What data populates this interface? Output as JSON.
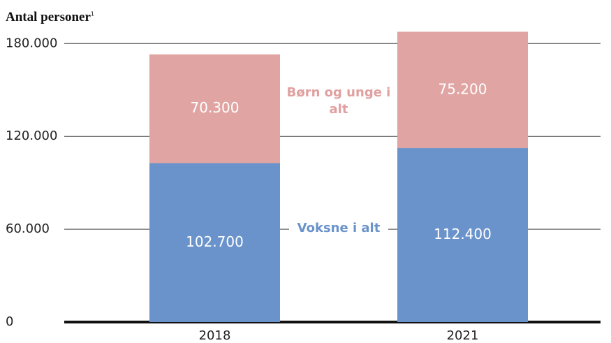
{
  "chart_data": {
    "type": "stacked-bar",
    "title": "Antal personer",
    "title_note": "1",
    "categories": [
      "2018",
      "2021"
    ],
    "series": [
      {
        "name": "Voksne i alt",
        "color": "#6a93cc",
        "values": [
          102700,
          112400
        ],
        "value_labels": [
          "102.700",
          "112.400"
        ]
      },
      {
        "name": "Børn og unge i alt",
        "color": "#e0a5a3",
        "values": [
          70300,
          75200
        ],
        "value_labels": [
          "70.300",
          "75.200"
        ]
      }
    ],
    "ylim": [
      0,
      200000
    ],
    "yticks": [
      0,
      {
        "value": 60000,
        "label": "60.000"
      },
      {
        "value": 120000,
        "label": "120.000"
      },
      {
        "value": 180000,
        "label": "180.000"
      }
    ],
    "grid": true
  }
}
